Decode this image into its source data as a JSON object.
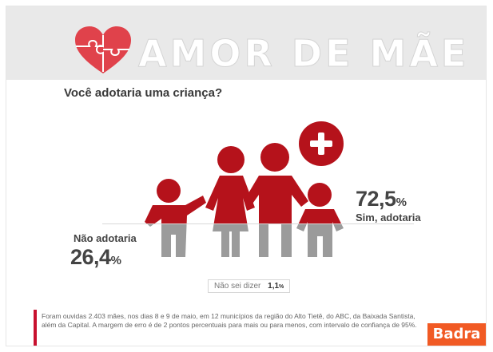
{
  "header": {
    "title": "AMOR DE MÃE"
  },
  "question": "Você adotaria uma criança?",
  "chart_data": {
    "type": "pictogram",
    "title": "Você adotaria uma criança?",
    "categories": [
      "Sim, adotaria",
      "Não adotaria",
      "Não sei dizer"
    ],
    "values": [
      72.5,
      26.4,
      1.1
    ],
    "unit": "%",
    "labels": {
      "yes": {
        "value": "72,5",
        "pct": "%",
        "label": "Sim, adotaria"
      },
      "no": {
        "value": "26,4",
        "pct": "%",
        "label": "Não adotaria"
      },
      "unknown": {
        "value": "1,1",
        "pct": "%",
        "label": "Não sei dizer"
      }
    },
    "colors": {
      "yes": "#b5121b",
      "no": "#9b9b9b"
    }
  },
  "footnote": {
    "line1": "Foram ouvidas 2.403 mães, nos dias 8 e 9 de maio, em 12 municípios da região do Alto Tietê, do ABC, da Baixada Santista,",
    "line2": "além da Capital. A margem de erro é de 2 pontos percentuais para mais ou para menos, com intervalo de confiança de 95%."
  },
  "brand": {
    "name": "Badra",
    "color": "#f15a24"
  }
}
